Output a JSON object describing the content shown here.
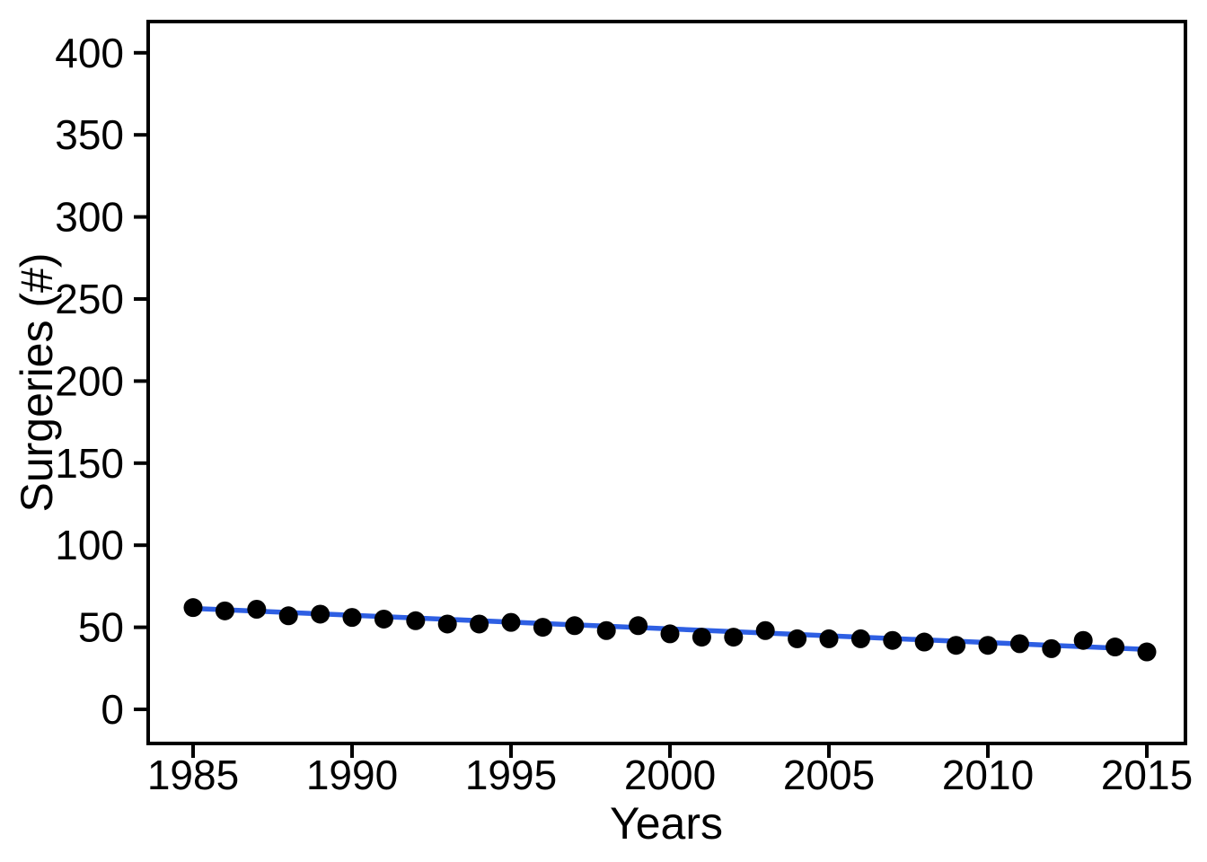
{
  "page": {
    "background": "#FFFFFF"
  },
  "chart_data": {
    "type": "scatter",
    "title": "",
    "xlabel": "Years",
    "ylabel": "Surgeries (#)",
    "x": [
      1985,
      1986,
      1987,
      1988,
      1989,
      1990,
      1991,
      1992,
      1993,
      1994,
      1995,
      1996,
      1997,
      1998,
      1999,
      2000,
      2001,
      2002,
      2003,
      2004,
      2005,
      2006,
      2007,
      2008,
      2009,
      2010,
      2011,
      2012,
      2013,
      2014,
      2015
    ],
    "series": [
      {
        "name": "Surgeries",
        "values": [
          62,
          60,
          61,
          57,
          58,
          56,
          55,
          54,
          52,
          52,
          53,
          50,
          51,
          48,
          51,
          46,
          44,
          44,
          48,
          43,
          43,
          43,
          42,
          41,
          39,
          39,
          40,
          37,
          42,
          38,
          35
        ]
      }
    ],
    "trend_line": {
      "x": [
        1985,
        2015
      ],
      "y": [
        61.5,
        36.5
      ],
      "color": "#2E5FE3"
    },
    "xticks": [
      1985,
      1990,
      1995,
      2000,
      2005,
      2010,
      2015
    ],
    "yticks": [
      0,
      50,
      100,
      150,
      200,
      250,
      300,
      350,
      400
    ],
    "xlim": [
      1983.5,
      2016.5
    ],
    "ylim": [
      -20,
      420
    ],
    "grid": false,
    "legend": null,
    "point_color": "#000000",
    "axis_color": "#000000",
    "background_color": "#FFFFFF"
  }
}
